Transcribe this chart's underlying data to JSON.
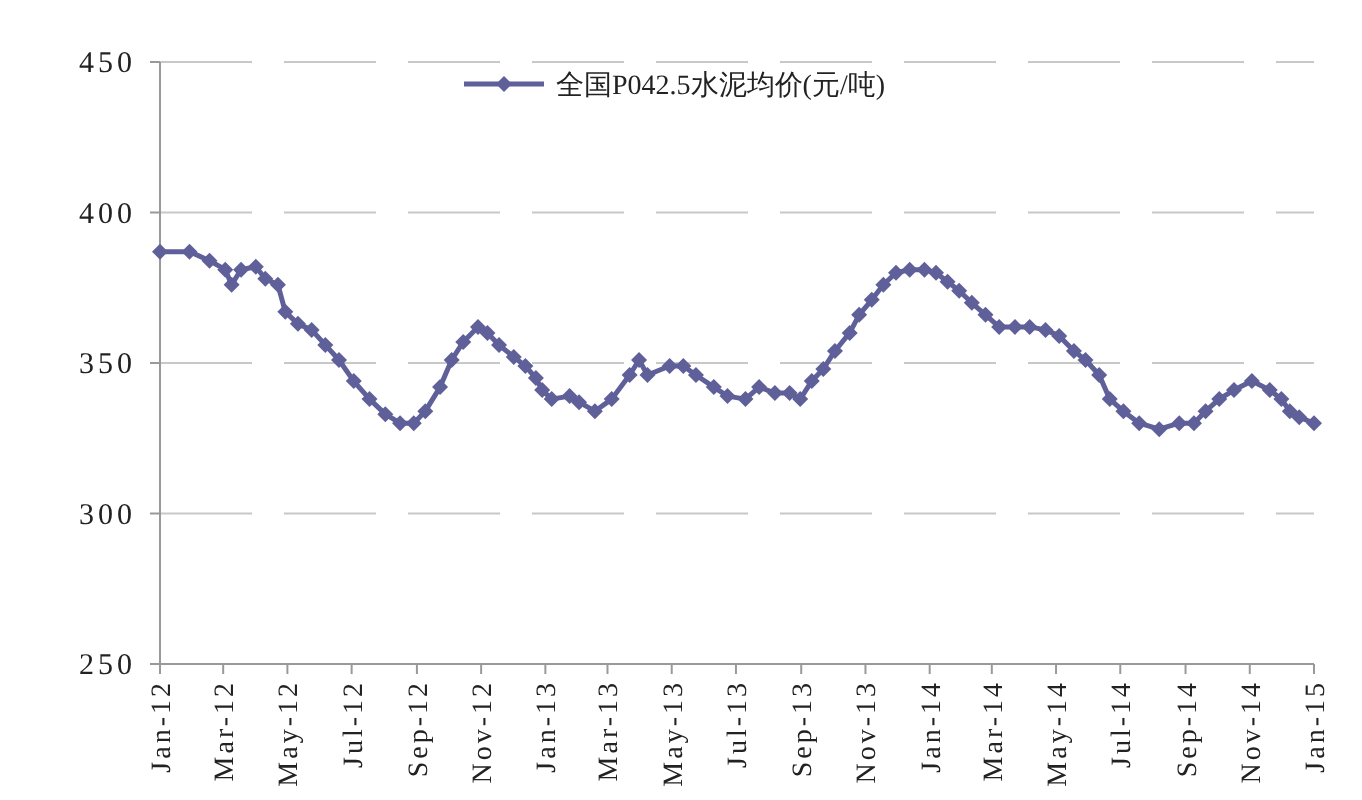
{
  "chart_data": {
    "type": "line",
    "legend": "top",
    "grid": "y",
    "marker": "diamond",
    "line_style": "solid",
    "xlim": [
      "2012-01-01",
      "2015-01-01"
    ],
    "ylim": [
      250,
      450
    ],
    "yticks": [
      250,
      300,
      350,
      400,
      450
    ],
    "xticks": [
      {
        "value": "2012-01-01",
        "label": "Jan-12"
      },
      {
        "value": "2012-03-01",
        "label": "Mar-12"
      },
      {
        "value": "2012-05-01",
        "label": "May-12"
      },
      {
        "value": "2012-07-01",
        "label": "Jul-12"
      },
      {
        "value": "2012-09-01",
        "label": "Sep-12"
      },
      {
        "value": "2012-11-01",
        "label": "Nov-12"
      },
      {
        "value": "2013-01-01",
        "label": "Jan-13"
      },
      {
        "value": "2013-03-01",
        "label": "Mar-13"
      },
      {
        "value": "2013-05-01",
        "label": "May-13"
      },
      {
        "value": "2013-07-01",
        "label": "Jul-13"
      },
      {
        "value": "2013-09-01",
        "label": "Sep-13"
      },
      {
        "value": "2013-11-01",
        "label": "Nov-13"
      },
      {
        "value": "2014-01-01",
        "label": "Jan-14"
      },
      {
        "value": "2014-03-01",
        "label": "Mar-14"
      },
      {
        "value": "2014-05-01",
        "label": "May-14"
      },
      {
        "value": "2014-07-01",
        "label": "Jul-14"
      },
      {
        "value": "2014-09-01",
        "label": "Sep-14"
      },
      {
        "value": "2014-11-01",
        "label": "Nov-14"
      },
      {
        "value": "2015-01-01",
        "label": "Jan-15"
      }
    ],
    "x": [
      "2012-01-01",
      "2012-01-29",
      "2012-02-17",
      "2012-03-03",
      "2012-03-09",
      "2012-03-18",
      "2012-04-01",
      "2012-04-10",
      "2012-04-22",
      "2012-04-29",
      "2012-05-11",
      "2012-05-24",
      "2012-06-06",
      "2012-06-19",
      "2012-07-03",
      "2012-07-18",
      "2012-08-02",
      "2012-08-16",
      "2012-08-29",
      "2012-09-09",
      "2012-09-23",
      "2012-10-04",
      "2012-10-15",
      "2012-10-29",
      "2012-11-07",
      "2012-11-18",
      "2012-12-02",
      "2012-12-13",
      "2012-12-23",
      "2012-12-29",
      "2013-01-07",
      "2013-01-24",
      "2013-02-02",
      "2013-02-17",
      "2013-03-05",
      "2013-03-22",
      "2013-03-31",
      "2013-04-08",
      "2013-04-29",
      "2013-05-12",
      "2013-05-24",
      "2013-06-10",
      "2013-06-23",
      "2013-07-10",
      "2013-07-23",
      "2013-08-07",
      "2013-08-21",
      "2013-08-31",
      "2013-09-11",
      "2013-09-22",
      "2013-10-03",
      "2013-10-17",
      "2013-10-26",
      "2013-11-07",
      "2013-11-18",
      "2013-11-30",
      "2013-12-13",
      "2013-12-27",
      "2014-01-07",
      "2014-01-18",
      "2014-01-29",
      "2014-02-10",
      "2014-02-23",
      "2014-03-08",
      "2014-03-23",
      "2014-04-06",
      "2014-04-21",
      "2014-05-04",
      "2014-05-18",
      "2014-05-29",
      "2014-06-11",
      "2014-06-21",
      "2014-07-04",
      "2014-07-19",
      "2014-08-07",
      "2014-08-26",
      "2014-09-09",
      "2014-09-20",
      "2014-10-03",
      "2014-10-17",
      "2014-11-03",
      "2014-11-20",
      "2014-12-01",
      "2014-12-09",
      "2014-12-18",
      "2015-01-01"
    ],
    "series": [
      {
        "name": "全国P042.5水泥均价(元/吨)",
        "color": "#5f5f99",
        "values": [
          387,
          387,
          384,
          381,
          376,
          381,
          382,
          378,
          376,
          367,
          363,
          361,
          356,
          351,
          344,
          338,
          333,
          330,
          330,
          334,
          342,
          351,
          357,
          362,
          360,
          356,
          352,
          349,
          345,
          341,
          338,
          339,
          337,
          334,
          338,
          346,
          351,
          346,
          349,
          349,
          346,
          342,
          339,
          338,
          342,
          340,
          340,
          338,
          344,
          348,
          354,
          360,
          366,
          371,
          376,
          380,
          381,
          381,
          380,
          377,
          374,
          370,
          366,
          362,
          362,
          362,
          361,
          359,
          354,
          351,
          346,
          338,
          334,
          330,
          328,
          330,
          330,
          334,
          338,
          341,
          344,
          341,
          338,
          334,
          332,
          330
        ]
      }
    ]
  }
}
